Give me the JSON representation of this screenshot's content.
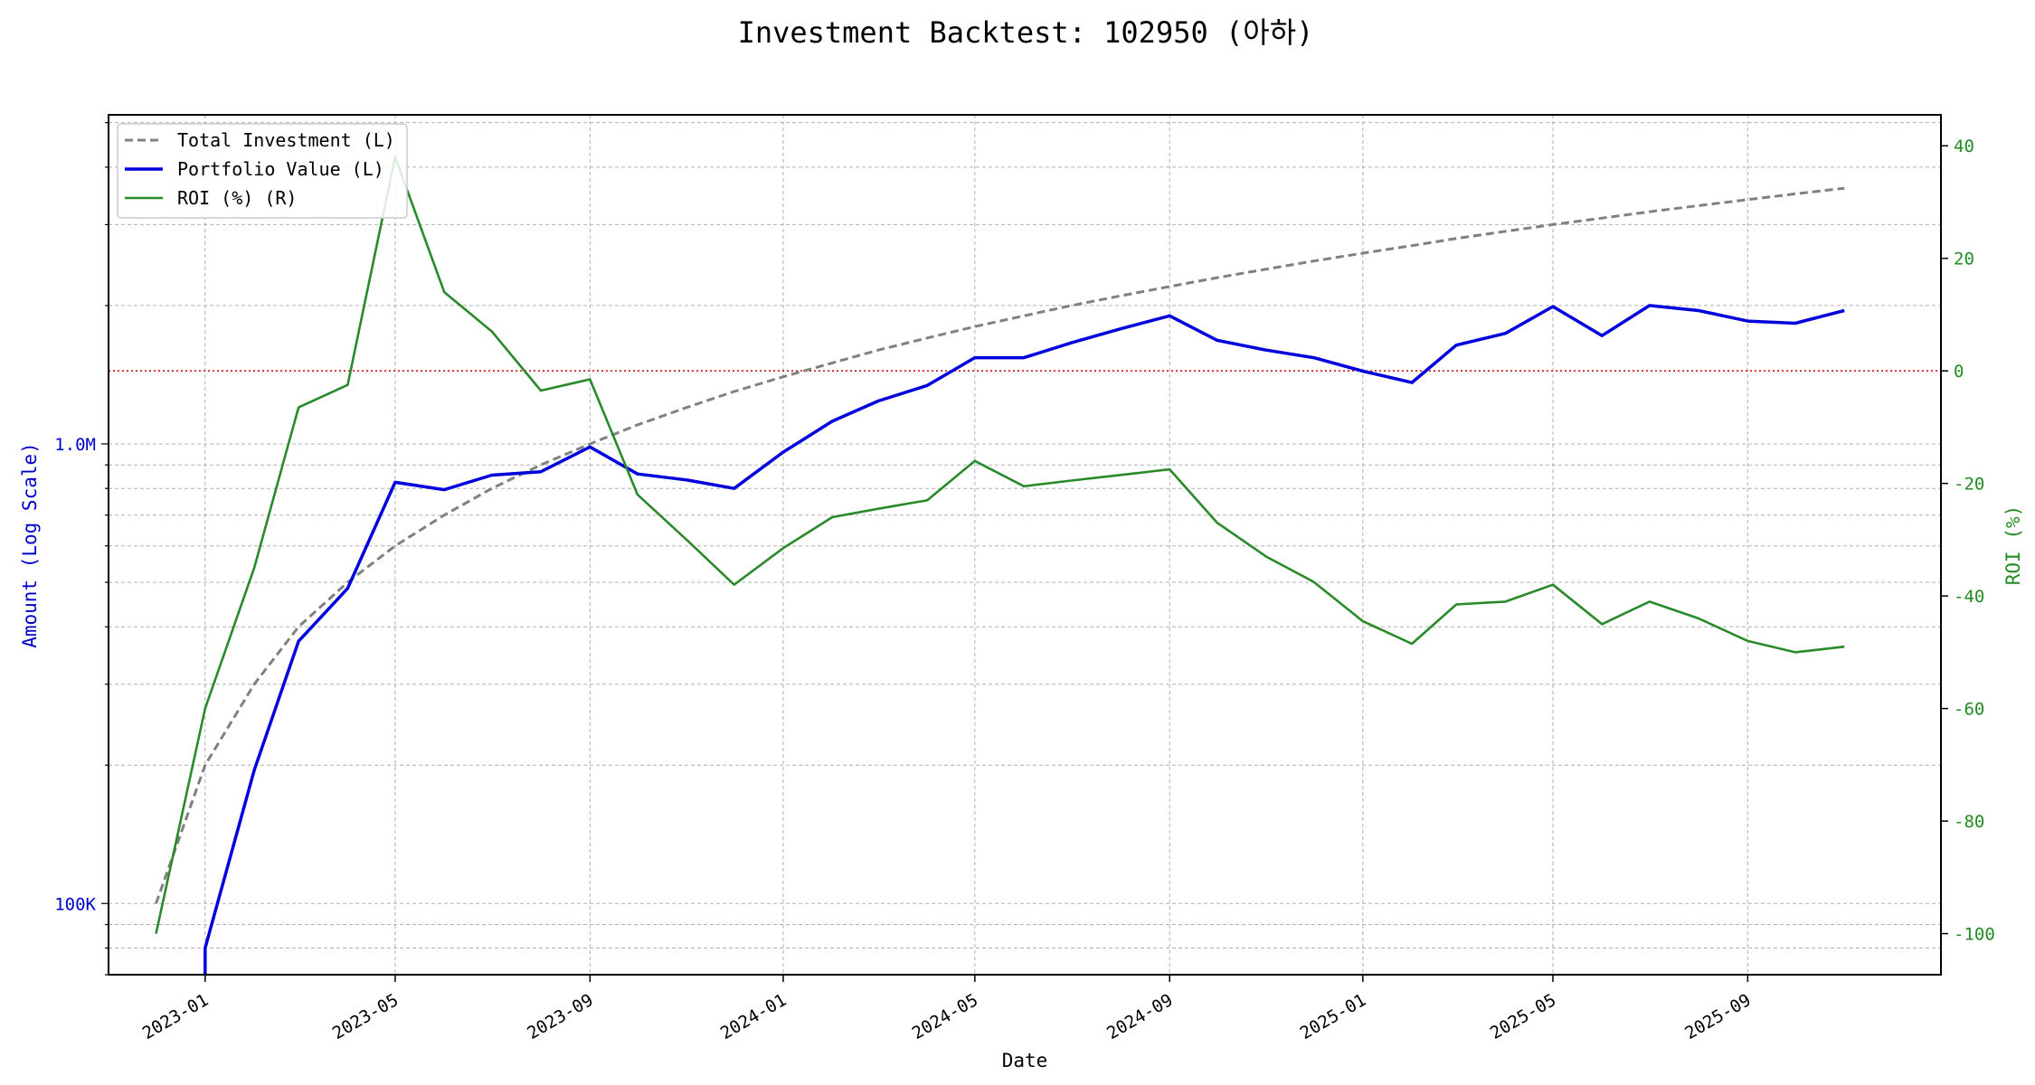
{
  "chart_data": {
    "type": "line",
    "title": "Investment Backtest: 102950 (아하)",
    "xlabel": "Date",
    "ylabel_left": "Amount (Log Scale)",
    "ylabel_right": "ROI (%)",
    "y_left_scale": "log",
    "y_left_ticks": [
      {
        "value": 100000,
        "label": "100K"
      },
      {
        "value": 1000000,
        "label": "1.0M"
      }
    ],
    "y_right_ticks": [
      -100,
      -80,
      -60,
      -40,
      -20,
      0,
      20,
      40
    ],
    "y_right_range": [
      -107.3,
      45.5
    ],
    "y_left_range": [
      70000,
      5200000
    ],
    "x_range": [
      "2022-11-01",
      "2026-01-01"
    ],
    "x_ticks": [
      "2023-01",
      "2023-05",
      "2023-09",
      "2024-01",
      "2024-05",
      "2024-09",
      "2025-01",
      "2025-05",
      "2025-09"
    ],
    "x_dates": [
      "2022-12-01",
      "2023-01-01",
      "2023-02-01",
      "2023-03-01",
      "2023-04-01",
      "2023-05-01",
      "2023-06-01",
      "2023-07-01",
      "2023-08-01",
      "2023-09-01",
      "2023-10-01",
      "2023-11-01",
      "2023-12-01",
      "2024-01-01",
      "2024-02-01",
      "2024-03-01",
      "2024-04-01",
      "2024-05-01",
      "2024-06-01",
      "2024-07-01",
      "2024-08-01",
      "2024-09-01",
      "2024-10-01",
      "2024-11-01",
      "2024-12-01",
      "2025-01-01",
      "2025-02-01",
      "2025-03-01",
      "2025-04-01",
      "2025-05-01",
      "2025-06-01",
      "2025-07-01",
      "2025-08-01",
      "2025-09-01",
      "2025-10-01",
      "2025-11-01"
    ],
    "series": [
      {
        "name": "Total Investment (L)",
        "axis": "left",
        "color": "#808080",
        "style": "dashed",
        "values": [
          100000,
          200000,
          300000,
          400000,
          500000,
          600000,
          700000,
          800000,
          900000,
          1000000,
          1100000,
          1200000,
          1300000,
          1400000,
          1500000,
          1600000,
          1700000,
          1800000,
          1900000,
          2000000,
          2100000,
          2200000,
          2300000,
          2400000,
          2500000,
          2600000,
          2700000,
          2800000,
          2900000,
          3000000,
          3100000,
          3200000,
          3300000,
          3400000,
          3500000,
          3600000
        ]
      },
      {
        "name": "Portfolio Value (L)",
        "axis": "left",
        "color": "#0000dd",
        "style": "solid",
        "values": [
          null,
          80000,
          195000,
          372000,
          485000,
          825000,
          795000,
          855000,
          870000,
          985000,
          860000,
          835000,
          800000,
          960000,
          1120000,
          1240000,
          1340000,
          1540000,
          1540000,
          1660000,
          1780000,
          1900000,
          1680000,
          1600000,
          1540000,
          1440000,
          1360000,
          1640000,
          1740000,
          1990000,
          1720000,
          2000000,
          1950000,
          1850000,
          1830000,
          1950000
        ]
      },
      {
        "name": "ROI (%) (R)",
        "axis": "right",
        "color": "#2a8a2a",
        "style": "solid",
        "values": [
          -100,
          -60,
          -35,
          -6.5,
          -2.5,
          38,
          14,
          7,
          -3.5,
          -1.5,
          -22,
          -30,
          -38,
          -31.5,
          -26,
          -24.5,
          -23,
          -16,
          -20.5,
          -19.5,
          -18.5,
          -17.5,
          -27,
          -33,
          -37.5,
          -44.5,
          -48.5,
          -41.5,
          -41,
          -38,
          -45,
          -41,
          -44,
          -48,
          -50,
          -49
        ]
      }
    ],
    "reference_line": {
      "axis": "right",
      "value": 0,
      "color": "#cc0000",
      "style": "dotted"
    },
    "grid": true,
    "legend_position": "top-left"
  }
}
